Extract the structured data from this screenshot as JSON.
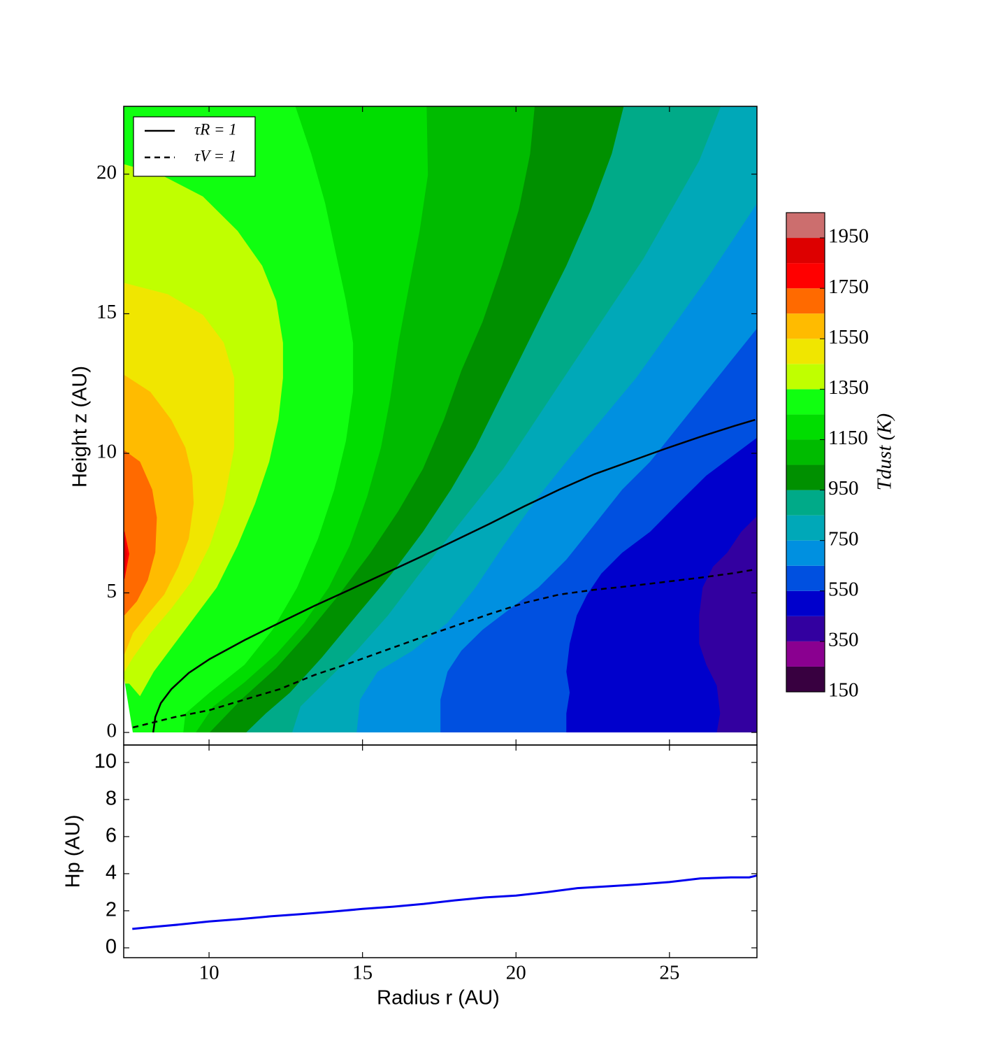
{
  "chart_data": [
    {
      "type": "contour",
      "ylabel": "Height z (AU)",
      "xlim": [
        7.22,
        27.85
      ],
      "ylim": [
        -0.45,
        22.43
      ],
      "xticks": [
        10,
        15,
        20,
        25
      ],
      "yticks": [
        0,
        5,
        10,
        15,
        20
      ],
      "levels": [
        150,
        250,
        350,
        450,
        550,
        650,
        750,
        850,
        950,
        1050,
        1150,
        1250,
        1350,
        1450,
        1550,
        1650,
        1750,
        1850,
        1950,
        2050
      ],
      "colors": [
        "#380040",
        "#8a0090",
        "#3300a0",
        "#0000cc",
        "#0050e0",
        "#0090e0",
        "#00a8b8",
        "#00aa88",
        "#009000",
        "#00bb00",
        "#00dd00",
        "#10ff10",
        "#c0ff00",
        "#f0e600",
        "#ffbb00",
        "#ff6a00",
        "#ff0000",
        "#dd0000",
        "#cc6e6e"
      ],
      "colorbar_label": "Tdust (K)",
      "colorbar_ticks": [
        150,
        350,
        550,
        750,
        950,
        1150,
        1350,
        1550,
        1750,
        1950
      ],
      "contours": [
        {
          "level": 350,
          "r": [
            28.0,
            28.0
          ],
          "z": [
            23.0,
            0
          ]
        },
        {
          "level": 450,
          "r": [
            28.0,
            28.02,
            27.34,
            26.88,
            26.42,
            26.08,
            25.97,
            25.97,
            26.2,
            26.54,
            26.65,
            26.54
          ],
          "z": [
            23.0,
            7.94,
            7.19,
            6.44,
            5.94,
            5.19,
            4.19,
            3.18,
            2.43,
            1.68,
            0.68,
            0
          ]
        },
        {
          "level": 550,
          "r": [
            28.0,
            28.02,
            27.11,
            26.2,
            25.28,
            24.37,
            23.46,
            22.78,
            22.32,
            21.98,
            21.75,
            21.64,
            21.75,
            21.64,
            21.64
          ],
          "z": [
            23.0,
            10.7,
            9.95,
            9.2,
            8.2,
            7.19,
            6.44,
            5.69,
            4.94,
            4.19,
            3.18,
            2.18,
            1.43,
            0.68,
            0
          ]
        },
        {
          "level": 650,
          "r": [
            28.0,
            28.02,
            27.11,
            26.2,
            25.28,
            24.37,
            23.46,
            22.55,
            21.64,
            20.73,
            19.82,
            18.91,
            18.22,
            17.77,
            17.54,
            17.54
          ],
          "z": [
            23.0,
            14.71,
            13.46,
            12.21,
            10.95,
            9.7,
            8.7,
            7.44,
            6.19,
            5.19,
            4.44,
            3.68,
            2.93,
            2.18,
            1.18,
            0
          ]
        },
        {
          "level": 750,
          "r": [
            28.0,
            28.0,
            27.11,
            26.2,
            25.06,
            23.92,
            22.78,
            21.64,
            20.73,
            19.59,
            18.68,
            17.77,
            16.63,
            15.49,
            14.92,
            14.81
          ],
          "z": [
            23.0,
            19.2,
            17.72,
            16.22,
            14.46,
            12.71,
            11.2,
            9.7,
            8.45,
            6.69,
            5.19,
            3.93,
            2.93,
            2.18,
            1.18,
            0
          ]
        },
        {
          "level": 850,
          "r": [
            26.88,
            25.97,
            25.06,
            24.15,
            23.23,
            22.32,
            21.41,
            20.5,
            19.59,
            18.68,
            17.77,
            16.86,
            15.83,
            14.81,
            13.9,
            12.98,
            12.71
          ],
          "z": [
            23.0,
            20.48,
            18.72,
            16.97,
            15.46,
            13.96,
            12.46,
            10.95,
            9.45,
            8.2,
            6.94,
            5.69,
            4.19,
            2.93,
            1.93,
            0.93,
            0
          ]
        },
        {
          "level": 950,
          "r": [
            23.64,
            23.12,
            22.44,
            21.64,
            20.84,
            20.05,
            19.36,
            18.68,
            17.88,
            16.97,
            15.95,
            14.81,
            13.67,
            12.64,
            11.85,
            11.21
          ],
          "z": [
            23.0,
            20.73,
            18.72,
            16.72,
            14.96,
            13.21,
            11.7,
            10.2,
            8.7,
            7.19,
            5.69,
            4.19,
            2.68,
            1.43,
            0.68,
            0
          ]
        },
        {
          "level": 1050,
          "r": [
            20.66,
            20.46,
            20.09,
            19.54,
            18.91,
            18.22,
            17.65,
            16.97,
            16.17,
            15.26,
            14.24,
            13.21,
            12.19,
            11.05,
            10.02
          ],
          "z": [
            23.0,
            20.73,
            18.72,
            16.72,
            14.71,
            12.96,
            11.2,
            9.45,
            7.94,
            6.44,
            4.94,
            3.56,
            2.31,
            1.18,
            0
          ]
        },
        {
          "level": 1150,
          "r": [
            17.08,
            17.13,
            16.86,
            16.51,
            16.17,
            15.9,
            15.6,
            15.15,
            14.58,
            13.9,
            13.1,
            12.19,
            11.16,
            10.14,
            9.57
          ],
          "z": [
            23.0,
            19.97,
            17.97,
            15.96,
            13.96,
            11.95,
            10.2,
            8.45,
            6.69,
            5.19,
            3.93,
            2.81,
            1.8,
            0.93,
            0
          ]
        },
        {
          "level": 1250,
          "r": [
            12.64,
            13.33,
            13.78,
            14.12,
            14.46,
            14.69,
            14.69,
            14.46,
            14.08,
            13.55,
            12.87,
            12.07,
            11.16,
            10.02,
            9.23,
            9.16
          ],
          "z": [
            23.0,
            20.73,
            18.97,
            17.22,
            15.46,
            13.96,
            12.21,
            10.45,
            8.7,
            6.94,
            5.19,
            3.68,
            2.43,
            1.43,
            0.68,
            0
          ]
        },
        {
          "level": 1350,
          "r": [
            7.25,
            8.43,
            9.8,
            10.93,
            11.73,
            12.19,
            12.41,
            12.41,
            12.26,
            11.96,
            11.5,
            10.93,
            10.25,
            9.57,
            8.88,
            8.2,
            7.75,
            7.4
          ],
          "z": [
            20.35,
            19.98,
            19.2,
            17.97,
            16.72,
            15.46,
            13.96,
            12.7,
            11.2,
            9.7,
            8.2,
            6.69,
            5.19,
            4.19,
            3.18,
            2.18,
            1.3,
            1.75
          ]
        },
        {
          "level": 1450,
          "r": [
            7.25,
            8.66,
            9.8,
            10.48,
            10.82,
            10.82,
            10.48,
            10.02,
            9.45,
            8.77,
            8.09,
            7.52,
            7.25
          ],
          "z": [
            16.1,
            15.7,
            14.96,
            13.96,
            12.7,
            10.2,
            8.2,
            6.69,
            5.44,
            4.44,
            3.56,
            2.68,
            2.18
          ]
        },
        {
          "level": 1550,
          "r": [
            7.25,
            8.09,
            8.77,
            9.23,
            9.45,
            9.5,
            9.34,
            9.0,
            8.54,
            7.97,
            7.52,
            7.25
          ],
          "z": [
            12.8,
            12.2,
            11.2,
            10.2,
            9.2,
            8.2,
            6.94,
            5.94,
            4.94,
            4.19,
            3.56,
            2.81
          ]
        },
        {
          "level": 1650,
          "r": [
            7.25,
            7.75,
            8.15,
            8.3,
            8.25,
            8.0,
            7.65,
            7.25
          ],
          "z": [
            10.1,
            9.7,
            8.7,
            7.7,
            6.45,
            5.45,
            4.7,
            4.2
          ]
        },
        {
          "level": 1750,
          "r": [
            7.25,
            7.4,
            7.25
          ],
          "z": [
            7.2,
            6.4,
            5.5
          ]
        },
        {
          "level": 1850,
          "r": [
            7.25,
            7.32,
            7.25
          ],
          "z": [
            7.0,
            6.4,
            5.7
          ]
        }
      ],
      "legend": "upper left",
      "series": [
        {
          "name": "τR = 1",
          "color": "#000000",
          "style": "solid",
          "x": [
            8.18,
            8.25,
            8.43,
            8.77,
            9.34,
            10.02,
            11.16,
            12.3,
            13.44,
            14.58,
            15.72,
            16.86,
            18.0,
            19.13,
            20.27,
            21.41,
            22.55,
            23.69,
            24.83,
            25.97,
            27.11,
            27.79
          ],
          "values": [
            0,
            0.55,
            1.05,
            1.55,
            2.13,
            2.63,
            3.31,
            3.93,
            4.54,
            5.11,
            5.69,
            6.27,
            6.87,
            7.47,
            8.1,
            8.7,
            9.25,
            9.7,
            10.15,
            10.58,
            10.98,
            11.2
          ]
        },
        {
          "name": "τV = 1",
          "color": "#000000",
          "style": "dashed",
          "x": [
            7.52,
            8.88,
            10.02,
            11.16,
            12.3,
            13.44,
            14.58,
            15.72,
            16.86,
            18.0,
            19.13,
            20.27,
            21.41,
            22.55,
            23.69,
            24.83,
            25.97,
            27.11,
            27.79
          ],
          "values": [
            0.18,
            0.55,
            0.8,
            1.18,
            1.55,
            2.06,
            2.48,
            2.93,
            3.38,
            3.81,
            4.24,
            4.64,
            4.94,
            5.11,
            5.24,
            5.39,
            5.54,
            5.71,
            5.84
          ]
        }
      ]
    },
    {
      "type": "line",
      "xlabel": "Radius r (AU)",
      "ylabel": "Hp (AU)",
      "xlim": [
        7.22,
        27.85
      ],
      "ylim": [
        -0.53,
        10.94
      ],
      "xticks": [
        10,
        15,
        20,
        25
      ],
      "yticks": [
        0,
        2,
        4,
        6,
        8,
        10
      ],
      "color": "#0000ee",
      "x": [
        7.5,
        8,
        9,
        10,
        11,
        12,
        13,
        14,
        15,
        16,
        17,
        18,
        19,
        20,
        21,
        22,
        23,
        24,
        25,
        26,
        27,
        27.6,
        27.85
      ],
      "values": [
        1.02,
        1.1,
        1.25,
        1.42,
        1.55,
        1.7,
        1.82,
        1.95,
        2.1,
        2.22,
        2.37,
        2.56,
        2.72,
        2.82,
        3.0,
        3.22,
        3.32,
        3.42,
        3.55,
        3.74,
        3.8,
        3.8,
        3.9
      ]
    }
  ]
}
